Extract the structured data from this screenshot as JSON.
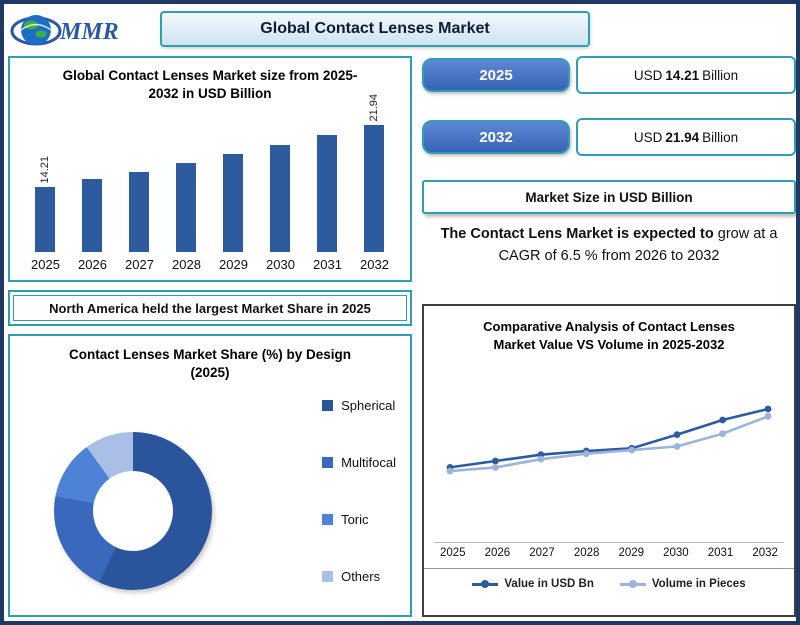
{
  "header": {
    "title": "Global Contact Lenses Market",
    "logo_text": "MMR"
  },
  "right_panel": {
    "rows": [
      {
        "year": "2025",
        "prefix": "USD",
        "value": "14.21",
        "suffix": "Billion"
      },
      {
        "year": "2032",
        "prefix": "USD",
        "value": "21.94",
        "suffix": "Billion"
      }
    ],
    "market_size_label": "Market Size in USD Billion",
    "cagr_bold": "The Contact Lens Market is expected to",
    "cagr_rest": " grow at a CAGR of 6.5 % from 2026 to 2032"
  },
  "na_banner": {
    "text": "North America held the largest Market Share in 2025"
  },
  "colors": {
    "outer_border": "#203864",
    "teal_border": "#2E9FB0",
    "bar_blue": "#2E5B9E",
    "pill_blue": "#3763B4"
  },
  "chart_data": [
    {
      "id": "bar-usd",
      "type": "bar",
      "title": "Global Contact Lenses Market size from 2025-2032 in USD Billion",
      "categories": [
        "2025",
        "2026",
        "2027",
        "2028",
        "2029",
        "2030",
        "2031",
        "2032"
      ],
      "values": [
        14.21,
        15.13,
        16.12,
        17.16,
        18.28,
        19.47,
        20.73,
        21.94
      ],
      "point_labels": [
        "14.21",
        "",
        "",
        "",
        "",
        "",
        "",
        "21.94"
      ],
      "bar_color": "#2E5B9E",
      "ylim": [
        6,
        23
      ],
      "ylabel": "USD Billion"
    },
    {
      "id": "donut-design",
      "type": "pie",
      "title": "Contact Lenses Market Share (%) by Design (2025)",
      "slices": [
        {
          "label": "Spherical",
          "value": 57,
          "color": "#2A549B"
        },
        {
          "label": "Multifocal",
          "value": 21,
          "color": "#3968BC"
        },
        {
          "label": "Toric",
          "value": 12,
          "color": "#4E82D6"
        },
        {
          "label": "Others",
          "value": 10,
          "color": "#A9BFE5"
        }
      ]
    },
    {
      "id": "line-compare",
      "type": "line",
      "title": "Comparative Analysis of Contact Lenses Market Value VS Volume in 2025-2032",
      "x": [
        "2025",
        "2026",
        "2027",
        "2028",
        "2029",
        "2030",
        "2031",
        "2032"
      ],
      "series": [
        {
          "name": "Value in USD Bn",
          "color": "#2E5B9E",
          "values": [
            3.1,
            3.45,
            3.8,
            4.0,
            4.15,
            4.9,
            5.7,
            6.3
          ]
        },
        {
          "name": "Volume in Pieces",
          "color": "#9CB3DE",
          "values": [
            2.9,
            3.1,
            3.55,
            3.85,
            4.05,
            4.25,
            4.95,
            5.9
          ]
        }
      ],
      "ylim": [
        0,
        8
      ],
      "legend_position": "bottom"
    }
  ]
}
